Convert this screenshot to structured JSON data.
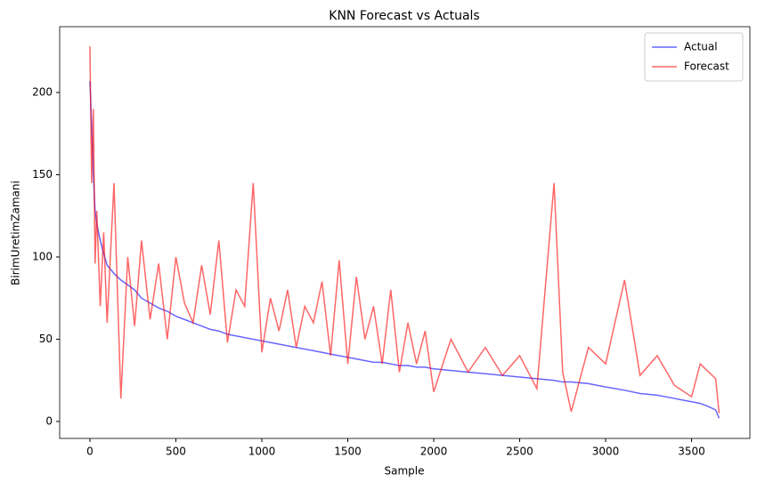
{
  "chart_data": {
    "type": "line",
    "title": "KNN Forecast vs Actuals",
    "x_label": "Sample",
    "y_label": "BirimUretimZamani",
    "x": [
      0,
      10,
      20,
      30,
      40,
      60,
      80,
      100,
      140,
      180,
      220,
      260,
      300,
      350,
      400,
      450,
      500,
      550,
      600,
      650,
      700,
      750,
      800,
      850,
      900,
      950,
      1000,
      1050,
      1100,
      1150,
      1200,
      1250,
      1300,
      1350,
      1400,
      1450,
      1500,
      1550,
      1600,
      1650,
      1700,
      1750,
      1800,
      1850,
      1900,
      1950,
      2000,
      2100,
      2200,
      2300,
      2400,
      2500,
      2600,
      2700,
      2750,
      2800,
      2900,
      3000,
      3110,
      3200,
      3300,
      3400,
      3500,
      3550,
      3600,
      3640,
      3660
    ],
    "series": [
      {
        "name": "Actual",
        "color": "#0000ff",
        "values": [
          207,
          180,
          150,
          128,
          120,
          110,
          102,
          95,
          90,
          86,
          83,
          80,
          75,
          72,
          69,
          67,
          64,
          62,
          60,
          58,
          56,
          55,
          53,
          52,
          51,
          50,
          49,
          48,
          47,
          46,
          45,
          44,
          43,
          42,
          41,
          40,
          39,
          38,
          37,
          36,
          36,
          35,
          34,
          34,
          33,
          33,
          32,
          31,
          30,
          29,
          28,
          27,
          26,
          25,
          24,
          24,
          23,
          21,
          19,
          17,
          16,
          14,
          12,
          11,
          9,
          7,
          2
        ]
      },
      {
        "name": "Forecast",
        "color": "#ff0000",
        "values": [
          228,
          145,
          190,
          96,
          128,
          70,
          115,
          60,
          145,
          14,
          100,
          58,
          110,
          62,
          96,
          50,
          100,
          72,
          60,
          95,
          65,
          110,
          48,
          80,
          70,
          145,
          42,
          75,
          55,
          80,
          45,
          70,
          60,
          85,
          40,
          98,
          35,
          88,
          50,
          70,
          35,
          80,
          30,
          60,
          35,
          55,
          18,
          50,
          30,
          45,
          28,
          40,
          20,
          145,
          30,
          6,
          45,
          35,
          86,
          28,
          40,
          22,
          15,
          35,
          30,
          26,
          5
        ]
      }
    ],
    "xlim": [
      -176,
      3839
    ],
    "ylim": [
      -10.3,
      240
    ],
    "xticks": [
      0,
      500,
      1000,
      1500,
      2000,
      2500,
      3000,
      3500
    ],
    "yticks": [
      0,
      50,
      100,
      150,
      200
    ],
    "legend": "upper right"
  }
}
